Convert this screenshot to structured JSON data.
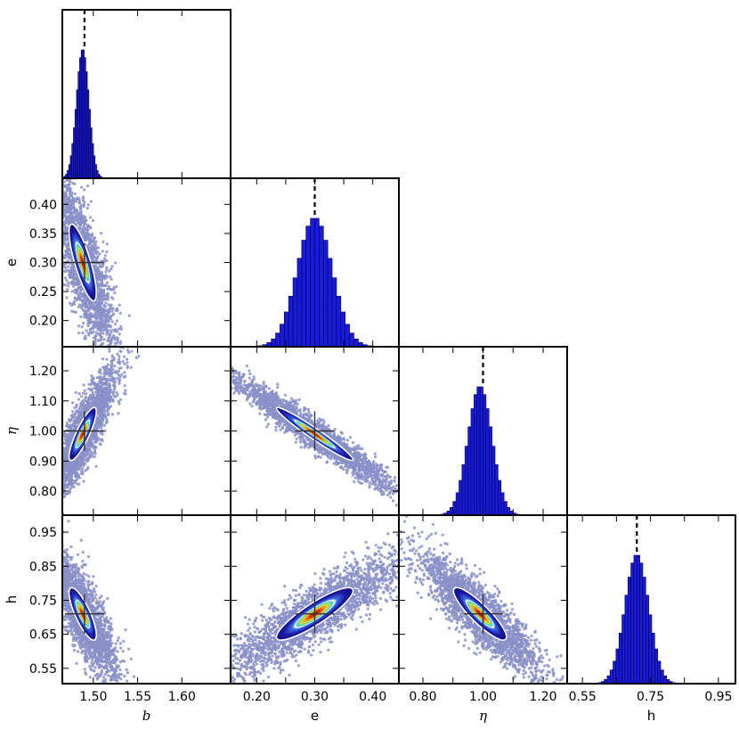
{
  "chart_data": {
    "type": "corner",
    "parameters": [
      {
        "key": "b",
        "label": "b",
        "italic": true,
        "truth": 1.49,
        "range": [
          1.465,
          1.655
        ],
        "ticks": [
          1.5,
          1.55,
          1.6
        ],
        "tick_labels": [
          "1.50",
          "1.55",
          "1.60"
        ],
        "post_mean": 1.488,
        "post_sd": 0.007
      },
      {
        "key": "e",
        "label": "e",
        "italic": false,
        "truth": 0.3,
        "range": [
          0.155,
          0.445
        ],
        "ticks": [
          0.2,
          0.25,
          0.3,
          0.35,
          0.4
        ],
        "tick_labels": [
          "0.20",
          "0.25",
          "0.30",
          "0.35",
          "0.40"
        ],
        "xtick_labels": [
          "0.20",
          "",
          "0.30",
          "",
          "0.40"
        ],
        "post_mean": 0.3,
        "post_sd": 0.03
      },
      {
        "key": "eta",
        "label": "η",
        "italic": true,
        "truth": 1.0,
        "range": [
          0.72,
          1.28
        ],
        "ticks": [
          0.8,
          0.9,
          1.0,
          1.1,
          1.2
        ],
        "tick_labels": [
          "0.80",
          "0.90",
          "1.00",
          "1.10",
          "1.20"
        ],
        "xtick_labels": [
          "0.80",
          "",
          "1.00",
          "",
          "1.20"
        ],
        "post_mean": 0.99,
        "post_sd": 0.04
      },
      {
        "key": "h",
        "label": "h",
        "italic": false,
        "truth": 0.71,
        "range": [
          0.505,
          1.0
        ],
        "ticks": [
          0.55,
          0.65,
          0.75,
          0.85,
          0.95
        ],
        "tick_labels": [
          "0.55",
          "0.65",
          "0.75",
          "0.85",
          "0.95"
        ],
        "xtick_labels": [
          "0.55",
          "",
          "0.75",
          "",
          "0.95"
        ],
        "post_mean": 0.71,
        "post_sd": 0.035
      }
    ],
    "pair_correlations": {
      "e|b": -0.8,
      "eta|b": 0.85,
      "h|b": -0.8,
      "eta|e": -0.97,
      "h|e": 0.88,
      "h|eta": -0.88
    },
    "histogram_bins": 36,
    "truth_marker": "dashed line on histograms, cross on 2D panels",
    "grid": false,
    "colors": {
      "scatter": "#8890c8",
      "hist_fill": "#1a1adb",
      "hist_edge": "#000044",
      "contour_levels": [
        "#1a0a90",
        "#3a6ee8",
        "#40d0d0",
        "#ffffff",
        "#c8e040",
        "#f0a020",
        "#e03010",
        "#8a1010"
      ],
      "frame": "#000000"
    }
  }
}
